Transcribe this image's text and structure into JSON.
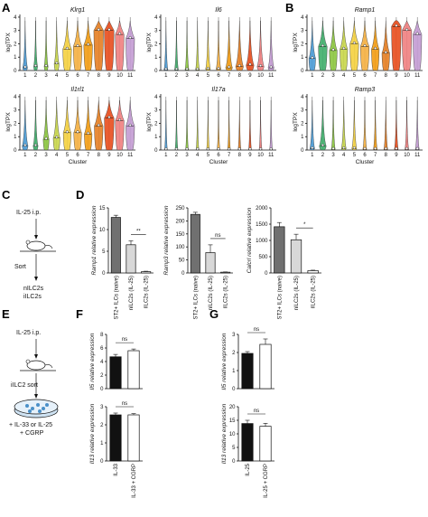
{
  "panels": {
    "A": "A",
    "B": "B",
    "C": "C",
    "D": "D",
    "E": "E",
    "F": "F",
    "G": "G"
  },
  "violin": {
    "ylabel": "logTPX",
    "xlabel": "Cluster",
    "clusters": [
      "1",
      "2",
      "3",
      "4",
      "5",
      "6",
      "7",
      "8",
      "9",
      "10",
      "11"
    ],
    "yticks": [
      "0",
      "1",
      "2",
      "3",
      "4"
    ],
    "colors": [
      "#4a9bd6",
      "#3fae6a",
      "#8cc63f",
      "#c8d64a",
      "#f4d03f",
      "#f5b041",
      "#f39c12",
      "#e67e22",
      "#e84c1c",
      "#f08080",
      "#c39bd3"
    ],
    "plots": [
      {
        "gene": "Klrg1",
        "medians": [
          0.2,
          0.3,
          0.3,
          0.5,
          1.6,
          1.8,
          1.9,
          3.0,
          3.0,
          2.7,
          2.4
        ],
        "widths": [
          0.5,
          0.4,
          0.4,
          0.5,
          0.9,
          0.9,
          0.9,
          1.0,
          1.0,
          0.9,
          0.9
        ]
      },
      {
        "gene": "Il6",
        "medians": [
          0.05,
          0.05,
          0.05,
          0.05,
          0.1,
          0.1,
          0.2,
          0.3,
          0.4,
          0.3,
          0.2
        ],
        "widths": [
          0.4,
          0.4,
          0.4,
          0.4,
          0.5,
          0.5,
          0.7,
          0.8,
          0.8,
          0.7,
          0.6
        ]
      },
      {
        "gene": "Il1rl1",
        "medians": [
          0.3,
          0.3,
          0.8,
          0.9,
          1.3,
          1.3,
          1.2,
          1.8,
          2.4,
          2.2,
          1.8
        ],
        "widths": [
          0.6,
          0.5,
          0.6,
          0.7,
          0.8,
          0.8,
          0.8,
          0.9,
          1.0,
          0.9,
          0.9
        ]
      },
      {
        "gene": "Il17a",
        "medians": [
          0.02,
          0.02,
          0.02,
          0.02,
          0.02,
          0.02,
          0.02,
          0.02,
          0.02,
          0.02,
          0.02
        ],
        "widths": [
          0.3,
          0.3,
          0.3,
          0.3,
          0.3,
          0.3,
          0.3,
          0.3,
          0.3,
          0.3,
          0.3
        ]
      },
      {
        "gene": "Ramp1",
        "medians": [
          0.9,
          1.8,
          1.5,
          1.6,
          2.0,
          1.8,
          1.6,
          1.3,
          3.3,
          3.0,
          2.7
        ],
        "widths": [
          0.7,
          0.9,
          0.8,
          0.8,
          0.9,
          0.9,
          0.8,
          0.8,
          1.0,
          1.0,
          0.9
        ]
      },
      {
        "gene": "Ramp3",
        "medians": [
          0.1,
          0.3,
          0.05,
          0.1,
          0.1,
          0.05,
          0.05,
          0.05,
          0.05,
          0.05,
          0.05
        ],
        "widths": [
          0.5,
          0.7,
          0.4,
          0.5,
          0.5,
          0.4,
          0.4,
          0.4,
          0.4,
          0.4,
          0.4
        ]
      }
    ]
  },
  "schematicC": {
    "inject": "IL-25 i.p.",
    "sort": "Sort",
    "out1": "nILC2s",
    "out2": "iILC2s"
  },
  "schematicE": {
    "inject": "IL-25 i.p.",
    "sort": "iILC2 sort",
    "treat1": "+ IL-33 or IL-25",
    "treat2": "+ CGRP"
  },
  "chart_data": [
    {
      "type": "bar",
      "panel": "D",
      "ylabel": "Ramp1 relative expression",
      "yticks": [
        "0",
        "5",
        "10",
        "15"
      ],
      "ylim": [
        0,
        15
      ],
      "categories": [
        "ST2+ ILCs (naive)",
        "nILC2s (IL-25)",
        "iILC2s (IL-25)"
      ],
      "values": [
        12.8,
        6.5,
        0.3
      ],
      "errors": [
        0.5,
        0.9,
        0.1
      ],
      "colors": [
        "#707070",
        "#d8d8d8",
        "#ffffff"
      ],
      "sig": "**"
    },
    {
      "type": "bar",
      "panel": "D",
      "ylabel": "Ramp3 relative expression",
      "yticks": [
        "0",
        "50",
        "100",
        "150",
        "200",
        "250"
      ],
      "ylim": [
        0,
        250
      ],
      "categories": [
        "ST2+ ILCs (naive)",
        "nILC2s (IL-25)",
        "iILC2s (IL-25)"
      ],
      "values": [
        225,
        78,
        3
      ],
      "errors": [
        8,
        30,
        1
      ],
      "colors": [
        "#707070",
        "#d8d8d8",
        "#ffffff"
      ],
      "sig": "ns"
    },
    {
      "type": "bar",
      "panel": "D",
      "ylabel": "Calcrl relative expression",
      "yticks": [
        "0",
        "500",
        "1000",
        "1500",
        "2000"
      ],
      "ylim": [
        0,
        2000
      ],
      "categories": [
        "ST2+ ILCs (naive)",
        "nILC2s (IL-25)",
        "iILC2s (IL-25)"
      ],
      "values": [
        1420,
        1020,
        70
      ],
      "errors": [
        130,
        170,
        15
      ],
      "colors": [
        "#707070",
        "#d8d8d8",
        "#ffffff"
      ],
      "sig": "*"
    },
    {
      "type": "bar",
      "panel": "F",
      "ylabel": "Il5 relative expression",
      "yticks": [
        "0",
        "2",
        "4",
        "6",
        "8"
      ],
      "ylim": [
        0,
        8
      ],
      "categories": [
        "",
        ""
      ],
      "values": [
        4.7,
        5.6
      ],
      "errors": [
        0.35,
        0.25
      ],
      "colors": [
        "#111111",
        "#ffffff"
      ],
      "sig": "ns"
    },
    {
      "type": "bar",
      "panel": "F",
      "ylabel": "Il13 relative expression",
      "yticks": [
        "0",
        "1",
        "2",
        "3"
      ],
      "ylim": [
        0,
        3
      ],
      "categories": [
        "IL-33",
        "IL-33 + CGRP"
      ],
      "values": [
        2.55,
        2.55
      ],
      "errors": [
        0.1,
        0.07
      ],
      "colors": [
        "#111111",
        "#ffffff"
      ],
      "sig": "ns"
    },
    {
      "type": "bar",
      "panel": "G",
      "ylabel": "Il5 relative expression",
      "yticks": [
        "0",
        "1",
        "2",
        "3"
      ],
      "ylim": [
        0,
        3
      ],
      "categories": [
        "",
        ""
      ],
      "values": [
        1.95,
        2.45
      ],
      "errors": [
        0.1,
        0.3
      ],
      "colors": [
        "#111111",
        "#ffffff"
      ],
      "sig": "ns"
    },
    {
      "type": "bar",
      "panel": "G",
      "ylabel": "Il13 relative expression",
      "yticks": [
        "0",
        "5",
        "10",
        "15",
        "20"
      ],
      "ylim": [
        0,
        20
      ],
      "categories": [
        "IL-25",
        "IL-25 + CGRP"
      ],
      "values": [
        13.8,
        12.8
      ],
      "errors": [
        1.2,
        1.1
      ],
      "colors": [
        "#111111",
        "#ffffff"
      ],
      "sig": "ns"
    }
  ]
}
